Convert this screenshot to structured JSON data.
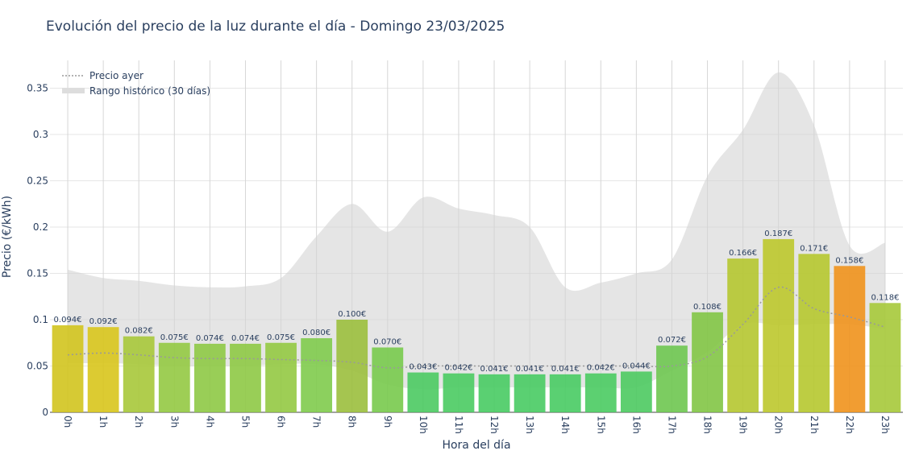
{
  "chart_data": {
    "type": "bar",
    "title": "Evolución del precio de la luz durante el día - Domingo 23/03/2025",
    "xlabel": "Hora del día",
    "ylabel": "Precio (€/kWh)",
    "ylim": [
      0,
      0.38
    ],
    "yticks": [
      0,
      0.05,
      0.1,
      0.15,
      0.2,
      0.25,
      0.3,
      0.35
    ],
    "ytick_labels": [
      "0",
      "0.05",
      "0.1",
      "0.15",
      "0.2",
      "0.25",
      "0.3",
      "0.35"
    ],
    "grid": true,
    "legend_position": "top-left",
    "categories": [
      "0h",
      "1h",
      "2h",
      "3h",
      "4h",
      "5h",
      "6h",
      "7h",
      "8h",
      "9h",
      "10h",
      "11h",
      "12h",
      "13h",
      "14h",
      "15h",
      "16h",
      "17h",
      "18h",
      "19h",
      "20h",
      "21h",
      "22h",
      "23h"
    ],
    "values": [
      0.094,
      0.092,
      0.082,
      0.075,
      0.074,
      0.074,
      0.075,
      0.08,
      0.1,
      0.07,
      0.043,
      0.042,
      0.041,
      0.041,
      0.041,
      0.042,
      0.044,
      0.072,
      0.108,
      0.166,
      0.187,
      0.171,
      0.158,
      0.118
    ],
    "value_labels": [
      "0.094€",
      "0.092€",
      "0.082€",
      "0.075€",
      "0.074€",
      "0.074€",
      "0.075€",
      "0.080€",
      "0.100€",
      "0.070€",
      "0.043€",
      "0.042€",
      "0.041€",
      "0.041€",
      "0.041€",
      "0.042€",
      "0.044€",
      "0.072€",
      "0.108€",
      "0.166€",
      "0.187€",
      "0.171€",
      "0.158€",
      "0.118€"
    ],
    "bar_colors": [
      "#d2c41e",
      "#d8c51c",
      "#a7c83a",
      "#93c943",
      "#8ec945",
      "#8ec945",
      "#93c943",
      "#7fcb4c",
      "#9bbf3d",
      "#78ca4d",
      "#4bca62",
      "#4acb62",
      "#48cb63",
      "#48cb63",
      "#48cb63",
      "#4acb62",
      "#4dca61",
      "#6ec650",
      "#82c545",
      "#b5c730",
      "#bcc82c",
      "#b6c82f",
      "#f0921c",
      "#a6c93a"
    ],
    "series": [
      {
        "name": "Precio ayer",
        "type": "line",
        "color": "#999999",
        "dash": "dot",
        "values": [
          0.062,
          0.064,
          0.062,
          0.059,
          0.058,
          0.058,
          0.057,
          0.056,
          0.054,
          0.048,
          0.05,
          0.05,
          0.05,
          0.05,
          0.05,
          0.05,
          0.05,
          0.05,
          0.06,
          0.095,
          0.135,
          0.112,
          0.103,
          0.092
        ]
      },
      {
        "name": "Rango histórico (30 días)",
        "type": "band",
        "color": "#d3d3d3",
        "upper": [
          0.154,
          0.145,
          0.142,
          0.137,
          0.135,
          0.136,
          0.145,
          0.19,
          0.225,
          0.195,
          0.232,
          0.22,
          0.213,
          0.2,
          0.135,
          0.14,
          0.15,
          0.165,
          0.255,
          0.305,
          0.367,
          0.31,
          0.18,
          0.183
        ],
        "lower": [
          0.053,
          0.053,
          0.052,
          0.05,
          0.05,
          0.05,
          0.052,
          0.052,
          0.045,
          0.03,
          0.025,
          0.027,
          0.027,
          0.027,
          0.027,
          0.027,
          0.027,
          0.045,
          0.065,
          0.095,
          0.094,
          0.095,
          0.095,
          0.09
        ]
      }
    ]
  },
  "colors": {
    "text": "#2a3f5f",
    "grid": "#e6e6e6",
    "vgrid": "#d6d6d6",
    "axis_zero": "#444444"
  }
}
